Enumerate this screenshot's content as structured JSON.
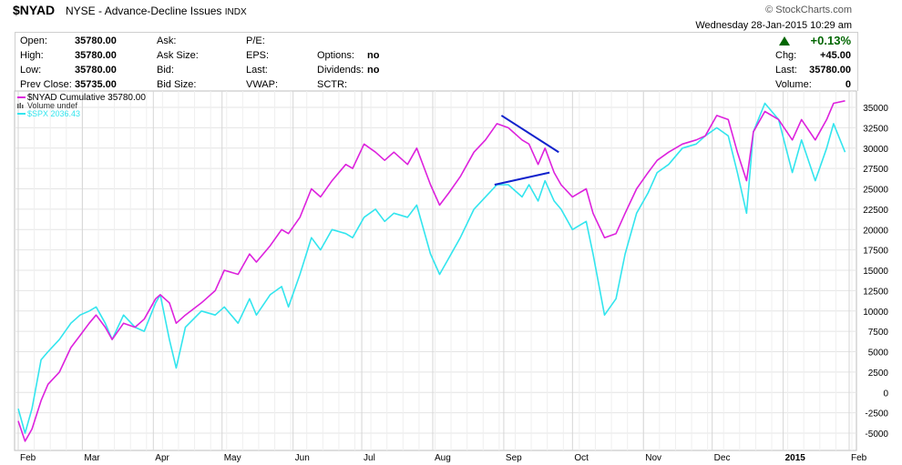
{
  "header": {
    "symbol": "$NYAD",
    "exchange": "NYSE",
    "name": "- Advance-Decline Issues",
    "type": "INDX",
    "watermark": "© StockCharts.com",
    "datetime": "Wednesday  28-Jan-2015  10:29 am",
    "change_pct": "+0.13%",
    "quote": [
      {
        "label": "Open:",
        "value": "35780.00"
      },
      {
        "label": "High:",
        "value": "35780.00"
      },
      {
        "label": "Low:",
        "value": "35780.00"
      },
      {
        "label": "Prev Close:",
        "value": "35735.00"
      },
      {
        "label": "Ask:",
        "value": ""
      },
      {
        "label": "Ask Size:",
        "value": ""
      },
      {
        "label": "Bid:",
        "value": ""
      },
      {
        "label": "Bid Size:",
        "value": ""
      },
      {
        "label": "P/E:",
        "value": ""
      },
      {
        "label": "EPS:",
        "value": ""
      },
      {
        "label": "Last:",
        "value": ""
      },
      {
        "label": "VWAP:",
        "value": ""
      },
      {
        "label": "Options:",
        "value": "no"
      },
      {
        "label": "Dividends:",
        "value": "no"
      },
      {
        "label": "SCTR:",
        "value": ""
      },
      {
        "label": "Chg:",
        "value": "+45.00"
      },
      {
        "label": "Last:",
        "value": "35780.00"
      },
      {
        "label": "Volume:",
        "value": "0"
      }
    ]
  },
  "colors": {
    "nyad": "#dd22dd",
    "spx": "#33e5ee",
    "annotation": "#1122cc",
    "grid": "#e4e4e4",
    "up": "#006600"
  },
  "chart_data": {
    "type": "line",
    "legend": [
      {
        "text": "$NYAD Cumulative 35780.00",
        "color": "#dd22dd"
      },
      {
        "text": "Volume undef",
        "color": "#555555"
      },
      {
        "text": "$SPX 2036.43",
        "color": "#33e5ee"
      }
    ],
    "x_ticks": [
      "Feb",
      "Mar",
      "Apr",
      "May",
      "Jun",
      "Jul",
      "Aug",
      "Sep",
      "Oct",
      "Nov",
      "Dec",
      "2015",
      "Feb"
    ],
    "y_ticks": [
      "35000",
      "32500",
      "30000",
      "27500",
      "25000",
      "22500",
      "20000",
      "17500",
      "15000",
      "12500",
      "10000",
      "7500",
      "5000",
      "2500",
      "0",
      "-2500",
      "-5000"
    ],
    "ylim": [
      -6000,
      37000
    ],
    "series": [
      {
        "name": "$NYAD Cumulative",
        "color": "#dd22dd",
        "points": [
          [
            "2014-02-01",
            -3500
          ],
          [
            "2014-02-04",
            -6000
          ],
          [
            "2014-02-07",
            -4500
          ],
          [
            "2014-02-11",
            -1000
          ],
          [
            "2014-02-14",
            1000
          ],
          [
            "2014-02-19",
            2500
          ],
          [
            "2014-02-24",
            5500
          ],
          [
            "2014-02-28",
            7000
          ],
          [
            "2014-03-04",
            8500
          ],
          [
            "2014-03-07",
            9500
          ],
          [
            "2014-03-11",
            8000
          ],
          [
            "2014-03-14",
            6500
          ],
          [
            "2014-03-19",
            8500
          ],
          [
            "2014-03-24",
            8000
          ],
          [
            "2014-03-28",
            9000
          ],
          [
            "2014-04-02",
            11500
          ],
          [
            "2014-04-04",
            12000
          ],
          [
            "2014-04-08",
            11000
          ],
          [
            "2014-04-11",
            8500
          ],
          [
            "2014-04-15",
            9500
          ],
          [
            "2014-04-22",
            11000
          ],
          [
            "2014-04-28",
            12500
          ],
          [
            "2014-05-02",
            15000
          ],
          [
            "2014-05-08",
            14500
          ],
          [
            "2014-05-13",
            17000
          ],
          [
            "2014-05-16",
            16000
          ],
          [
            "2014-05-22",
            18000
          ],
          [
            "2014-05-27",
            20000
          ],
          [
            "2014-05-30",
            19500
          ],
          [
            "2014-06-04",
            21500
          ],
          [
            "2014-06-09",
            25000
          ],
          [
            "2014-06-13",
            24000
          ],
          [
            "2014-06-18",
            26000
          ],
          [
            "2014-06-24",
            28000
          ],
          [
            "2014-06-27",
            27500
          ],
          [
            "2014-07-02",
            30500
          ],
          [
            "2014-07-07",
            29500
          ],
          [
            "2014-07-11",
            28500
          ],
          [
            "2014-07-15",
            29500
          ],
          [
            "2014-07-21",
            28000
          ],
          [
            "2014-07-25",
            30000
          ],
          [
            "2014-07-31",
            25500
          ],
          [
            "2014-08-04",
            23000
          ],
          [
            "2014-08-08",
            24500
          ],
          [
            "2014-08-13",
            26500
          ],
          [
            "2014-08-19",
            29500
          ],
          [
            "2014-08-24",
            31000
          ],
          [
            "2014-08-29",
            33000
          ],
          [
            "2014-09-03",
            32500
          ],
          [
            "2014-09-09",
            31000
          ],
          [
            "2014-09-12",
            30500
          ],
          [
            "2014-09-16",
            28000
          ],
          [
            "2014-09-19",
            30000
          ],
          [
            "2014-09-23",
            27000
          ],
          [
            "2014-09-26",
            25500
          ],
          [
            "2014-10-01",
            24000
          ],
          [
            "2014-10-07",
            25000
          ],
          [
            "2014-10-10",
            22000
          ],
          [
            "2014-10-15",
            19000
          ],
          [
            "2014-10-20",
            19500
          ],
          [
            "2014-10-24",
            22000
          ],
          [
            "2014-10-29",
            25000
          ],
          [
            "2014-11-03",
            27000
          ],
          [
            "2014-11-07",
            28500
          ],
          [
            "2014-11-12",
            29500
          ],
          [
            "2014-11-18",
            30500
          ],
          [
            "2014-11-24",
            31000
          ],
          [
            "2014-11-28",
            31500
          ],
          [
            "2014-12-03",
            34000
          ],
          [
            "2014-12-08",
            33500
          ],
          [
            "2014-12-12",
            29500
          ],
          [
            "2014-12-16",
            26000
          ],
          [
            "2014-12-19",
            32000
          ],
          [
            "2014-12-24",
            34500
          ],
          [
            "2014-12-30",
            33500
          ],
          [
            "2015-01-05",
            31000
          ],
          [
            "2015-01-09",
            33500
          ],
          [
            "2015-01-15",
            31000
          ],
          [
            "2015-01-20",
            33500
          ],
          [
            "2015-01-23",
            35500
          ],
          [
            "2015-01-28",
            35800
          ]
        ]
      },
      {
        "name": "$SPX",
        "color": "#33e5ee",
        "points": [
          [
            "2014-02-01",
            -2000
          ],
          [
            "2014-02-04",
            -5000
          ],
          [
            "2014-02-07",
            -2000
          ],
          [
            "2014-02-11",
            4000
          ],
          [
            "2014-02-14",
            5000
          ],
          [
            "2014-02-19",
            6500
          ],
          [
            "2014-02-24",
            8500
          ],
          [
            "2014-02-28",
            9500
          ],
          [
            "2014-03-04",
            10000
          ],
          [
            "2014-03-07",
            10500
          ],
          [
            "2014-03-11",
            8500
          ],
          [
            "2014-03-14",
            6500
          ],
          [
            "2014-03-19",
            9500
          ],
          [
            "2014-03-24",
            8000
          ],
          [
            "2014-03-28",
            7500
          ],
          [
            "2014-04-02",
            11000
          ],
          [
            "2014-04-04",
            12000
          ],
          [
            "2014-04-08",
            6500
          ],
          [
            "2014-04-11",
            3000
          ],
          [
            "2014-04-15",
            8000
          ],
          [
            "2014-04-22",
            10000
          ],
          [
            "2014-04-28",
            9500
          ],
          [
            "2014-05-02",
            10500
          ],
          [
            "2014-05-08",
            8500
          ],
          [
            "2014-05-13",
            11500
          ],
          [
            "2014-05-16",
            9500
          ],
          [
            "2014-05-22",
            12000
          ],
          [
            "2014-05-27",
            13000
          ],
          [
            "2014-05-30",
            10500
          ],
          [
            "2014-06-04",
            14500
          ],
          [
            "2014-06-09",
            19000
          ],
          [
            "2014-06-13",
            17500
          ],
          [
            "2014-06-18",
            20000
          ],
          [
            "2014-06-24",
            19500
          ],
          [
            "2014-06-27",
            19000
          ],
          [
            "2014-07-02",
            21500
          ],
          [
            "2014-07-07",
            22500
          ],
          [
            "2014-07-11",
            21000
          ],
          [
            "2014-07-15",
            22000
          ],
          [
            "2014-07-21",
            21500
          ],
          [
            "2014-07-25",
            23000
          ],
          [
            "2014-07-31",
            17000
          ],
          [
            "2014-08-04",
            14500
          ],
          [
            "2014-08-08",
            16500
          ],
          [
            "2014-08-13",
            19000
          ],
          [
            "2014-08-19",
            22500
          ],
          [
            "2014-08-24",
            24000
          ],
          [
            "2014-08-29",
            25500
          ],
          [
            "2014-09-03",
            25500
          ],
          [
            "2014-09-09",
            24000
          ],
          [
            "2014-09-12",
            25500
          ],
          [
            "2014-09-16",
            23500
          ],
          [
            "2014-09-19",
            26000
          ],
          [
            "2014-09-23",
            23500
          ],
          [
            "2014-09-26",
            22500
          ],
          [
            "2014-10-01",
            20000
          ],
          [
            "2014-10-07",
            21000
          ],
          [
            "2014-10-10",
            17000
          ],
          [
            "2014-10-15",
            9500
          ],
          [
            "2014-10-20",
            11500
          ],
          [
            "2014-10-24",
            17000
          ],
          [
            "2014-10-29",
            22000
          ],
          [
            "2014-11-03",
            24500
          ],
          [
            "2014-11-07",
            27000
          ],
          [
            "2014-11-12",
            28000
          ],
          [
            "2014-11-18",
            30000
          ],
          [
            "2014-11-24",
            30500
          ],
          [
            "2014-11-28",
            31500
          ],
          [
            "2014-12-03",
            32500
          ],
          [
            "2014-12-08",
            31500
          ],
          [
            "2014-12-12",
            27000
          ],
          [
            "2014-12-16",
            22000
          ],
          [
            "2014-12-19",
            32000
          ],
          [
            "2014-12-24",
            35500
          ],
          [
            "2014-12-30",
            33500
          ],
          [
            "2015-01-05",
            27000
          ],
          [
            "2015-01-09",
            31000
          ],
          [
            "2015-01-15",
            26000
          ],
          [
            "2015-01-20",
            30000
          ],
          [
            "2015-01-23",
            33000
          ],
          [
            "2015-01-28",
            29500
          ]
        ]
      }
    ],
    "annotations": [
      {
        "type": "trendline",
        "points": [
          [
            "2014-08-31",
            34000
          ],
          [
            "2014-09-25",
            29500
          ]
        ]
      },
      {
        "type": "trendline",
        "points": [
          [
            "2014-08-28",
            25500
          ],
          [
            "2014-09-21",
            27000
          ]
        ]
      }
    ]
  }
}
